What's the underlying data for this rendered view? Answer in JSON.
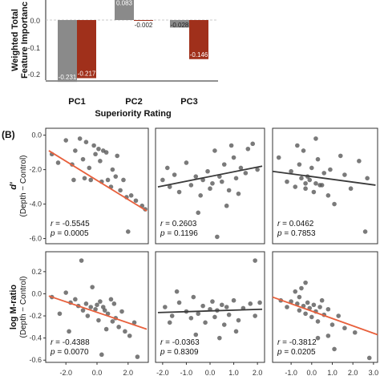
{
  "panel_b_label": "(B)",
  "colors": {
    "gray_bar": "#8a8a8a",
    "red_bar": "#a0301b",
    "point": "#555555",
    "fit_sig": "#e8603c",
    "fit_ns": "#3a3a3a"
  },
  "chart_data": [
    {
      "type": "bar",
      "title": "",
      "xlabel": "Superiority Rating",
      "ylabel": "Weighted Total Feature Importance",
      "ylabel_lines": [
        "Weighted Total",
        "Feature Importanc"
      ],
      "categories": [
        "PC1",
        "PC2",
        "PC3"
      ],
      "series": [
        {
          "values": [
            -0.231,
            0.083,
            -0.028
          ],
          "labels": [
            "-0.231",
            "0.083",
            "-0.028"
          ]
        },
        {
          "values": [
            -0.217,
            -0.002,
            -0.146
          ],
          "labels": [
            "-0.217",
            "-0.002",
            "-0.146"
          ]
        }
      ],
      "ylim": [
        -0.24,
        0.1
      ],
      "yticks": [
        "0.0",
        "-0.1",
        "-0.2"
      ],
      "ytick_values": [
        0.0,
        -0.1,
        -0.2
      ]
    },
    {
      "type": "scatter",
      "xlabel": "",
      "row_labels": [
        {
          "title": "d'",
          "subtitle": "(Depth − Control)"
        },
        {
          "title": "log M-ratio",
          "subtitle": "(Depth − Control)"
        }
      ],
      "rows": [
        {
          "ylim": [
            -6.3,
            0.4
          ],
          "yticks": [
            "0.0",
            "-2.0",
            "-4.0",
            "-6.0"
          ],
          "ytick_values": [
            0,
            -2,
            -4,
            -6
          ]
        },
        {
          "ylim": [
            -0.62,
            0.38
          ],
          "yticks": [
            "0.2",
            "0.0",
            "-0.2",
            "-0.4",
            "-0.6"
          ],
          "ytick_values": [
            0.2,
            0,
            -0.2,
            -0.4,
            -0.6
          ]
        }
      ],
      "columns": [
        {
          "xlim": [
            -3.3,
            3.3
          ],
          "xticks": [
            "-2.0",
            "0.0",
            "2.0"
          ],
          "xtick_values": [
            -2,
            0,
            2
          ]
        },
        {
          "xlim": [
            -2.3,
            2.3
          ],
          "xticks": [
            "-2.0",
            "-1.0",
            "0.0",
            "1.0",
            "2.0"
          ],
          "xtick_values": [
            -2,
            -1,
            0,
            1,
            2
          ]
        },
        {
          "xlim": [
            -1.9,
            3.2
          ],
          "xticks": [
            "-1.0",
            "0.0",
            "1.0",
            "2.0",
            "3.0"
          ],
          "xtick_values": [
            -1,
            0,
            1,
            2,
            3
          ]
        }
      ],
      "panels": [
        {
          "row": 0,
          "col": 0,
          "r": "= -0.5545",
          "p": "= 0.0005",
          "significant": true,
          "fit": [
            [
              -3.1,
              -0.9
            ],
            [
              3.2,
              -4.4
            ]
          ],
          "points": [
            [
              -2.9,
              -1.1
            ],
            [
              -2.5,
              -1.6
            ],
            [
              -2.0,
              -0.3
            ],
            [
              -1.6,
              -1.7
            ],
            [
              -1.4,
              -0.9
            ],
            [
              -1.1,
              -0.2
            ],
            [
              -0.9,
              -1.4
            ],
            [
              -0.7,
              -0.4
            ],
            [
              -0.5,
              -1.9
            ],
            [
              -0.4,
              -2.6
            ],
            [
              -0.2,
              -0.6
            ],
            [
              -0.1,
              -1.1
            ],
            [
              0.1,
              -0.8
            ],
            [
              0.2,
              -1.5
            ],
            [
              0.3,
              -2.7
            ],
            [
              0.4,
              -0.9
            ],
            [
              0.6,
              -1.0
            ],
            [
              0.7,
              -2.6
            ],
            [
              0.9,
              -3.0
            ],
            [
              1.0,
              -2.0
            ],
            [
              1.2,
              -2.4
            ],
            [
              1.3,
              -1.2
            ],
            [
              1.5,
              -3.2
            ],
            [
              1.7,
              -2.6
            ],
            [
              1.9,
              -3.6
            ],
            [
              2.2,
              -3.5
            ],
            [
              2.5,
              -3.8
            ],
            [
              2.9,
              -4.1
            ],
            [
              3.1,
              -4.3
            ],
            [
              2.0,
              -5.6
            ],
            [
              -1.5,
              -2.6
            ],
            [
              -0.8,
              -2.5
            ]
          ]
        },
        {
          "row": 0,
          "col": 1,
          "r": "= 0.2603",
          "p": "= 0.1196",
          "significant": false,
          "fit": [
            [
              -2.2,
              -3.0
            ],
            [
              2.2,
              -1.8
            ]
          ],
          "points": [
            [
              -2.0,
              -2.6
            ],
            [
              -1.7,
              -3.0
            ],
            [
              -1.5,
              -2.3
            ],
            [
              -1.3,
              -3.3
            ],
            [
              -1.0,
              -1.6
            ],
            [
              -0.8,
              -2.9
            ],
            [
              -0.6,
              -2.4
            ],
            [
              -0.4,
              -3.5
            ],
            [
              -0.3,
              -2.6
            ],
            [
              -0.1,
              -2.1
            ],
            [
              0.0,
              -3.1
            ],
            [
              0.1,
              -2.8
            ],
            [
              0.2,
              -0.9
            ],
            [
              0.4,
              -2.4
            ],
            [
              0.5,
              -2.7
            ],
            [
              0.6,
              -1.7
            ],
            [
              0.7,
              -4.1
            ],
            [
              0.8,
              -3.2
            ],
            [
              1.0,
              -1.3
            ],
            [
              1.1,
              -2.5
            ],
            [
              1.3,
              -1.9
            ],
            [
              1.5,
              -2.2
            ],
            [
              1.6,
              -0.8
            ],
            [
              1.8,
              -0.5
            ],
            [
              2.0,
              -2.0
            ],
            [
              1.2,
              -3.4
            ],
            [
              0.3,
              -5.9
            ],
            [
              -0.5,
              -4.5
            ],
            [
              -1.8,
              -1.9
            ],
            [
              0.9,
              -0.6
            ]
          ]
        },
        {
          "row": 0,
          "col": 2,
          "r": "= 0.0462",
          "p": "= 0.7853",
          "significant": false,
          "fit": [
            [
              -1.9,
              -2.1
            ],
            [
              3.1,
              -2.9
            ]
          ],
          "points": [
            [
              -1.6,
              -1.3
            ],
            [
              -1.2,
              -2.7
            ],
            [
              -1.0,
              -2.1
            ],
            [
              -0.8,
              -3.0
            ],
            [
              -0.6,
              -1.7
            ],
            [
              -0.5,
              -2.5
            ],
            [
              -0.4,
              -0.9
            ],
            [
              -0.3,
              -3.1
            ],
            [
              -0.2,
              -2.4
            ],
            [
              -0.1,
              -2.6
            ],
            [
              0.0,
              -1.9
            ],
            [
              0.1,
              -3.3
            ],
            [
              0.2,
              -2.8
            ],
            [
              0.3,
              -1.4
            ],
            [
              0.4,
              -2.9
            ],
            [
              0.6,
              -2.2
            ],
            [
              0.8,
              -3.5
            ],
            [
              0.9,
              -2.0
            ],
            [
              1.1,
              -4.0
            ],
            [
              1.4,
              -1.2
            ],
            [
              1.6,
              -2.3
            ],
            [
              1.9,
              -3.1
            ],
            [
              2.3,
              -1.5
            ],
            [
              2.7,
              -2.5
            ],
            [
              0.2,
              -0.2
            ],
            [
              -0.7,
              -0.6
            ],
            [
              0.5,
              -2.9
            ],
            [
              -0.3,
              -2.8
            ],
            [
              2.6,
              -5.6
            ]
          ]
        },
        {
          "row": 1,
          "col": 0,
          "r": "= -0.4388",
          "p": "= 0.0070",
          "significant": true,
          "fit": [
            [
              -3.1,
              -0.02
            ],
            [
              3.2,
              -0.32
            ]
          ],
          "points": [
            [
              -2.9,
              -0.03
            ],
            [
              -2.4,
              -0.18
            ],
            [
              -2.0,
              0.01
            ],
            [
              -1.7,
              -0.08
            ],
            [
              -1.4,
              -0.05
            ],
            [
              -1.2,
              -0.11
            ],
            [
              -1.0,
              0.3
            ],
            [
              -0.9,
              -0.15
            ],
            [
              -0.7,
              -0.09
            ],
            [
              -0.6,
              -0.2
            ],
            [
              -0.4,
              -0.12
            ],
            [
              -0.3,
              0.06
            ],
            [
              -0.1,
              -0.14
            ],
            [
              0.0,
              -0.1
            ],
            [
              0.1,
              -0.24
            ],
            [
              0.2,
              -0.07
            ],
            [
              0.4,
              -0.12
            ],
            [
              0.5,
              -0.15
            ],
            [
              0.7,
              -0.18
            ],
            [
              0.9,
              -0.05
            ],
            [
              1.0,
              -0.25
            ],
            [
              1.1,
              -0.09
            ],
            [
              1.2,
              -0.22
            ],
            [
              1.4,
              -0.3
            ],
            [
              1.6,
              -0.16
            ],
            [
              1.8,
              -0.34
            ],
            [
              2.1,
              -0.38
            ],
            [
              2.4,
              -0.26
            ],
            [
              0.6,
              -0.32
            ],
            [
              -1.8,
              -0.34
            ],
            [
              0.3,
              -0.55
            ],
            [
              2.6,
              -0.57
            ]
          ]
        },
        {
          "row": 1,
          "col": 1,
          "r": "= -0.0363",
          "p": "= 0.8309",
          "significant": false,
          "fit": [
            [
              -2.2,
              -0.17
            ],
            [
              2.2,
              -0.14
            ]
          ],
          "points": [
            [
              -1.9,
              -0.12
            ],
            [
              -1.6,
              -0.2
            ],
            [
              -1.3,
              -0.08
            ],
            [
              -1.0,
              -0.16
            ],
            [
              -0.8,
              -0.22
            ],
            [
              -0.7,
              -0.03
            ],
            [
              -0.5,
              -0.18
            ],
            [
              -0.3,
              -0.11
            ],
            [
              -0.2,
              -0.26
            ],
            [
              0.0,
              -0.14
            ],
            [
              0.1,
              -0.07
            ],
            [
              0.2,
              -0.21
            ],
            [
              0.3,
              -0.15
            ],
            [
              0.5,
              -0.1
            ],
            [
              0.6,
              -0.28
            ],
            [
              0.7,
              -0.12
            ],
            [
              0.8,
              -0.19
            ],
            [
              1.0,
              -0.06
            ],
            [
              1.2,
              -0.24
            ],
            [
              1.4,
              -0.13
            ],
            [
              1.7,
              -0.09
            ],
            [
              1.9,
              -0.2
            ],
            [
              1.9,
              0.3
            ],
            [
              -1.4,
              0.02
            ],
            [
              0.4,
              -0.4
            ],
            [
              -0.6,
              -0.37
            ],
            [
              1.1,
              -0.34
            ],
            [
              2.1,
              -0.08
            ],
            [
              -1.7,
              -0.26
            ]
          ]
        },
        {
          "row": 1,
          "col": 2,
          "r": "= -0.3812",
          "p": "= 0.0205",
          "significant": true,
          "fit": [
            [
              -1.9,
              -0.03
            ],
            [
              3.2,
              -0.37
            ]
          ],
          "points": [
            [
              -1.5,
              -0.06
            ],
            [
              -1.2,
              -0.12
            ],
            [
              -1.0,
              -0.07
            ],
            [
              -0.8,
              0.02
            ],
            [
              -0.7,
              -0.09
            ],
            [
              -0.6,
              -0.15
            ],
            [
              -0.5,
              0.05
            ],
            [
              -0.4,
              -0.11
            ],
            [
              -0.3,
              -0.18
            ],
            [
              -0.2,
              -0.08
            ],
            [
              -0.1,
              -0.13
            ],
            [
              0.0,
              -0.21
            ],
            [
              0.1,
              -0.1
            ],
            [
              0.2,
              -0.16
            ],
            [
              0.3,
              -0.25
            ],
            [
              0.4,
              -0.12
            ],
            [
              0.5,
              -0.06
            ],
            [
              0.6,
              -0.19
            ],
            [
              0.8,
              -0.14
            ],
            [
              1.0,
              -0.28
            ],
            [
              1.3,
              -0.2
            ],
            [
              1.6,
              -0.31
            ],
            [
              2.1,
              -0.35
            ],
            [
              -0.3,
              0.1
            ],
            [
              0.3,
              -0.4
            ],
            [
              0.8,
              -0.38
            ],
            [
              -0.6,
              -0.03
            ],
            [
              1.1,
              -0.5
            ],
            [
              2.8,
              -0.58
            ]
          ]
        }
      ]
    }
  ]
}
